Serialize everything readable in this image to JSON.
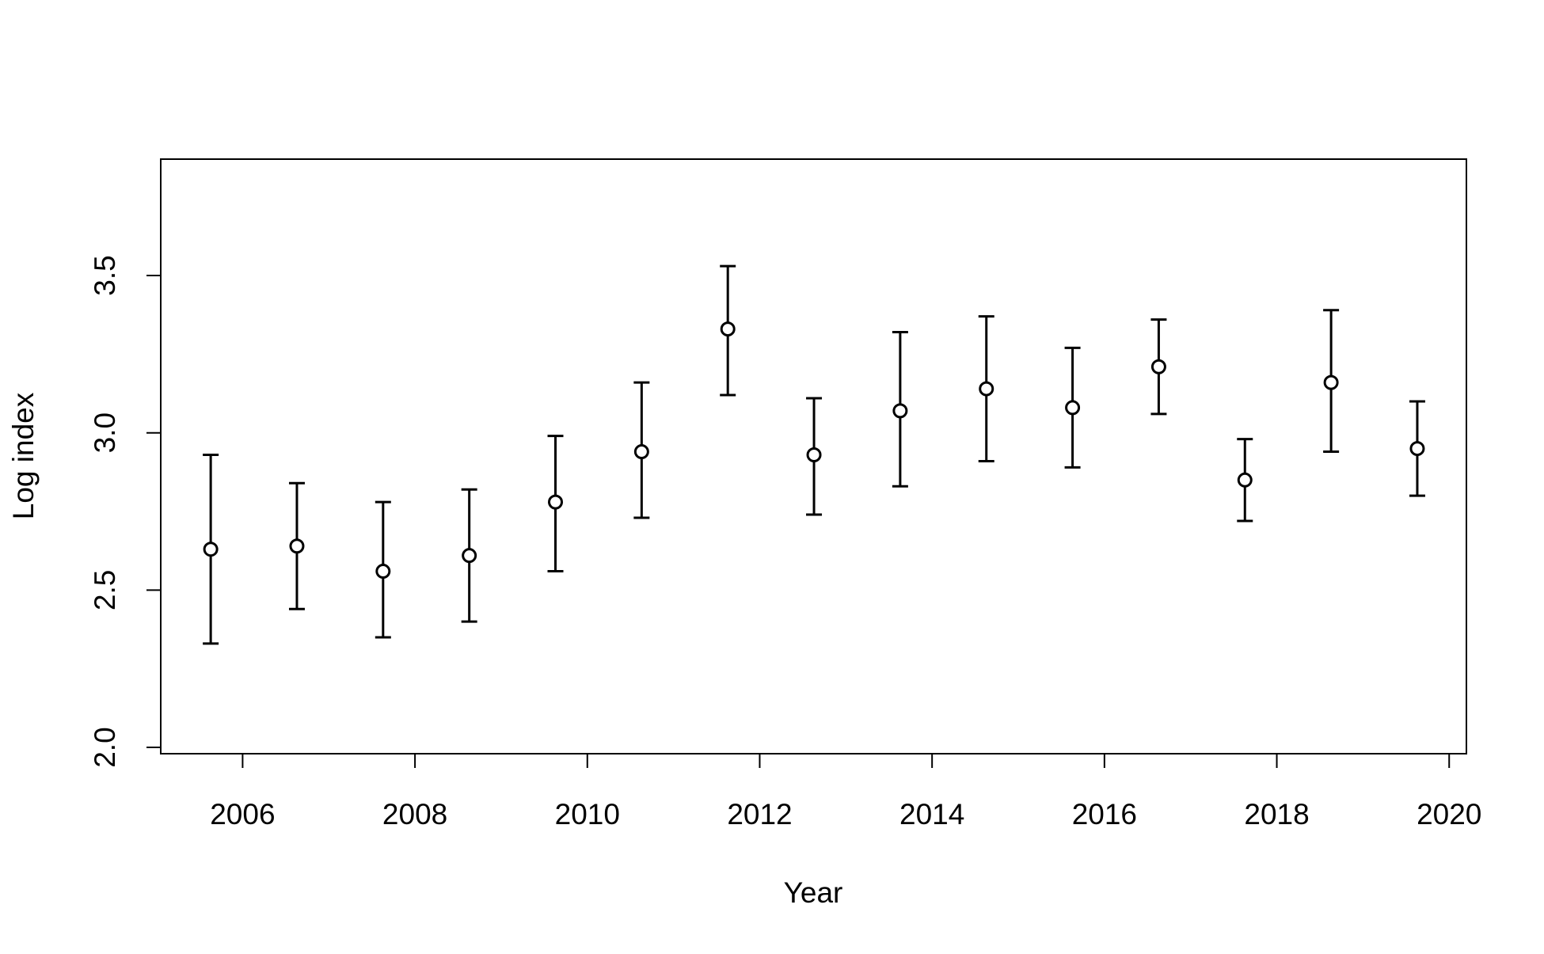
{
  "chart_data": {
    "type": "scatter",
    "title": "",
    "xlabel": "Year",
    "ylabel": "Log index",
    "xlim": [
      2005.05,
      2020.2
    ],
    "ylim": [
      1.98,
      3.87
    ],
    "x_ticks": [
      2006,
      2008,
      2010,
      2012,
      2014,
      2016,
      2018,
      2020
    ],
    "y_ticks": [
      2.0,
      2.5,
      3.0,
      3.5
    ],
    "x_tick_labels": [
      "2006",
      "2008",
      "2010",
      "2012",
      "2014",
      "2016",
      "2018",
      "2020"
    ],
    "y_tick_labels": [
      "2.0",
      "2.5",
      "3.0",
      "3.5"
    ],
    "grid": false,
    "legend": "none",
    "marker": "open-circle",
    "series": [
      {
        "points": [
          {
            "x": 2005.63,
            "y": 2.63,
            "lower": 2.33,
            "upper": 2.93
          },
          {
            "x": 2006.63,
            "y": 2.64,
            "lower": 2.44,
            "upper": 2.84
          },
          {
            "x": 2007.63,
            "y": 2.56,
            "lower": 2.35,
            "upper": 2.78
          },
          {
            "x": 2008.63,
            "y": 2.61,
            "lower": 2.4,
            "upper": 2.82
          },
          {
            "x": 2009.63,
            "y": 2.78,
            "lower": 2.56,
            "upper": 2.99
          },
          {
            "x": 2010.63,
            "y": 2.94,
            "lower": 2.73,
            "upper": 3.16
          },
          {
            "x": 2011.63,
            "y": 3.33,
            "lower": 3.12,
            "upper": 3.53
          },
          {
            "x": 2012.63,
            "y": 2.93,
            "lower": 2.74,
            "upper": 3.11
          },
          {
            "x": 2013.63,
            "y": 3.07,
            "lower": 2.83,
            "upper": 3.32
          },
          {
            "x": 2014.63,
            "y": 3.14,
            "lower": 2.91,
            "upper": 3.37
          },
          {
            "x": 2015.63,
            "y": 3.08,
            "lower": 2.89,
            "upper": 3.27
          },
          {
            "x": 2016.63,
            "y": 3.21,
            "lower": 3.06,
            "upper": 3.36
          },
          {
            "x": 2017.63,
            "y": 2.85,
            "lower": 2.72,
            "upper": 2.98
          },
          {
            "x": 2018.63,
            "y": 3.16,
            "lower": 2.94,
            "upper": 3.39
          },
          {
            "x": 2019.63,
            "y": 2.95,
            "lower": 2.8,
            "upper": 3.1
          }
        ]
      }
    ],
    "colors": {
      "axis": "#000000",
      "marker_fill": "#ffffff",
      "marker_stroke": "#000000",
      "errorbar": "#000000"
    }
  }
}
